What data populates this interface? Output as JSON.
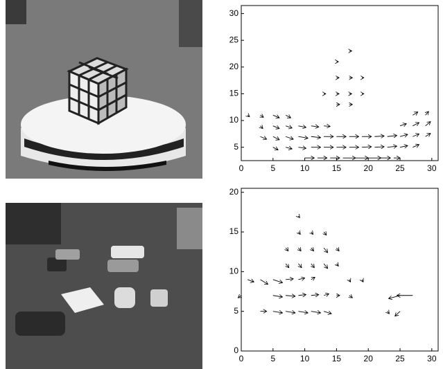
{
  "chart_data": [
    {
      "type": "quiver",
      "color": "#000000",
      "xlim": [
        0,
        31
      ],
      "ylim": [
        2.5,
        31.5
      ],
      "xticks": [
        0,
        5,
        10,
        15,
        20,
        25,
        30
      ],
      "yticks": [
        5,
        10,
        15,
        20,
        25,
        30
      ],
      "x": [
        10,
        12,
        14,
        16,
        18,
        20,
        22,
        24,
        5,
        7,
        9,
        11,
        13,
        15,
        17,
        19,
        21,
        23,
        25,
        27,
        3,
        5,
        7,
        9,
        11,
        13,
        15,
        17,
        19,
        21,
        23,
        25,
        27,
        29,
        3,
        5,
        7,
        9,
        11,
        13,
        25,
        27,
        29,
        1,
        3,
        5,
        7,
        27,
        29,
        15,
        17,
        13,
        15,
        17,
        19,
        15,
        17,
        19,
        15,
        17
      ],
      "y": [
        3,
        3,
        3,
        3,
        3,
        3,
        3,
        3,
        5,
        5,
        5,
        5,
        5,
        5,
        5,
        5,
        5,
        5,
        5,
        5,
        7,
        7,
        7,
        7,
        7,
        7,
        7,
        7,
        7,
        7,
        7,
        7,
        7,
        7,
        9,
        9,
        9,
        9,
        9,
        9,
        9,
        9,
        9,
        11,
        11,
        11,
        11,
        11,
        11,
        13,
        13,
        15,
        15,
        15,
        15,
        18,
        18,
        18,
        21,
        23
      ],
      "u": [
        1.5,
        1.5,
        1.5,
        2,
        2,
        2,
        1.5,
        1,
        0.8,
        1,
        1.2,
        1.5,
        1.5,
        1.5,
        1.5,
        1.5,
        1.5,
        1.5,
        1.2,
        1,
        1,
        1,
        1.2,
        1.5,
        1.5,
        1.5,
        1.5,
        1.5,
        1.5,
        1.5,
        1.5,
        1.2,
        1,
        0.8,
        0.4,
        1,
        1,
        1.2,
        1.2,
        1,
        1,
        1,
        0.8,
        0.3,
        0.5,
        1,
        0.8,
        0.8,
        0.5,
        0.5,
        0.5,
        0.3,
        0.4,
        0.4,
        0.3,
        0.4,
        0.5,
        0.3,
        0.3,
        0.4
      ],
      "v": [
        0,
        0,
        0,
        0,
        0,
        0,
        0,
        0,
        -0.5,
        -0.3,
        -0.2,
        0,
        0,
        0,
        0,
        0.1,
        0.1,
        0.2,
        0.3,
        0.5,
        -0.5,
        -0.6,
        -0.5,
        -0.3,
        -0.2,
        0,
        0,
        0,
        0,
        0.1,
        0.2,
        0.4,
        0.5,
        0.6,
        -0.5,
        -0.5,
        -0.4,
        -0.3,
        -0.2,
        -0.1,
        0.4,
        0.6,
        0.8,
        -0.3,
        -0.4,
        -0.5,
        -0.5,
        0.6,
        0.7,
        0,
        0,
        0,
        0,
        0,
        0,
        0,
        0,
        0,
        0,
        0
      ]
    },
    {
      "type": "quiver",
      "color": "#000000",
      "xlim": [
        0,
        31
      ],
      "ylim": [
        0,
        20.5
      ],
      "xticks": [
        0,
        5,
        10,
        15,
        20,
        25,
        30
      ],
      "yticks": [
        0,
        5,
        10,
        15,
        20
      ],
      "x": [
        3,
        5,
        7,
        9,
        11,
        13,
        5,
        7,
        9,
        11,
        13,
        15,
        17,
        1,
        3,
        5,
        7,
        9,
        11,
        25,
        27,
        25,
        23,
        7,
        9,
        11,
        13,
        15,
        7,
        9,
        11,
        13,
        15,
        9,
        11,
        13,
        9,
        17,
        19,
        0
      ],
      "y": [
        5,
        5,
        5,
        5,
        5,
        5,
        7,
        7,
        7,
        7,
        7,
        7,
        7,
        9,
        9,
        9,
        9,
        9,
        9,
        7,
        7,
        5,
        5,
        11,
        11,
        11,
        11,
        11,
        13,
        13,
        13,
        13,
        13,
        15,
        15,
        15,
        17,
        9,
        9,
        7
      ],
      "u": [
        1,
        1.5,
        1.5,
        1.5,
        1.5,
        1.2,
        1.5,
        1.5,
        1.2,
        1.2,
        0.8,
        0.5,
        0.5,
        1,
        1.2,
        1.5,
        1.2,
        1,
        0.6,
        -1.8,
        -2.5,
        -0.8,
        0.3,
        0.5,
        0.5,
        0.5,
        0.6,
        0.3,
        0.4,
        0.4,
        0.4,
        0.6,
        0.4,
        0.3,
        0.3,
        0.4,
        0.2,
        0.2,
        0.2,
        -0.5
      ],
      "v": [
        0,
        -0.2,
        -0.2,
        -0.2,
        -0.2,
        -0.3,
        -0.2,
        -0.1,
        0.1,
        0.1,
        0.2,
        0,
        -0.3,
        -0.3,
        -0.6,
        -0.4,
        0.1,
        0.2,
        0.3,
        -0.4,
        0,
        -0.6,
        -0.3,
        -0.5,
        -0.5,
        -0.5,
        -0.6,
        -0.3,
        -0.4,
        -0.4,
        -0.4,
        -0.6,
        -0.4,
        -0.3,
        -0.3,
        -0.4,
        -0.2,
        -0.3,
        -0.3,
        -0.3
      ]
    }
  ]
}
